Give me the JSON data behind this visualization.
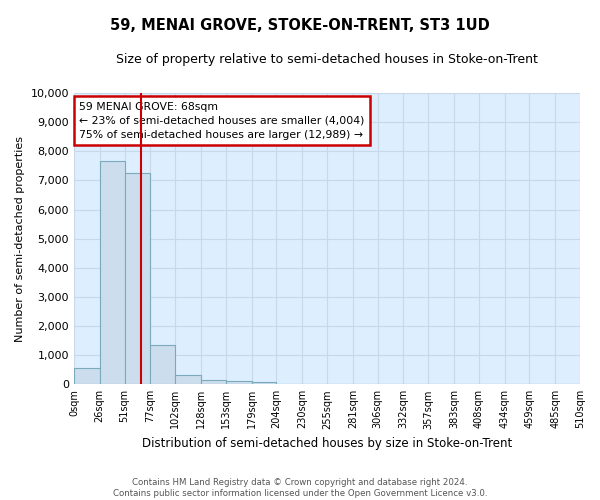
{
  "title": "59, MENAI GROVE, STOKE-ON-TRENT, ST3 1UD",
  "subtitle": "Size of property relative to semi-detached houses in Stoke-on-Trent",
  "xlabel": "Distribution of semi-detached houses by size in Stoke-on-Trent",
  "ylabel": "Number of semi-detached properties",
  "footer_line1": "Contains HM Land Registry data © Crown copyright and database right 2024.",
  "footer_line2": "Contains public sector information licensed under the Open Government Licence v3.0.",
  "bin_edges": [
    0,
    26,
    51,
    77,
    102,
    128,
    153,
    179,
    204,
    230,
    255,
    281,
    306,
    332,
    357,
    383,
    408,
    434,
    459,
    485,
    510
  ],
  "bin_labels": [
    "0sqm",
    "26sqm",
    "51sqm",
    "77sqm",
    "102sqm",
    "128sqm",
    "153sqm",
    "179sqm",
    "204sqm",
    "230sqm",
    "255sqm",
    "281sqm",
    "306sqm",
    "332sqm",
    "357sqm",
    "383sqm",
    "408sqm",
    "434sqm",
    "459sqm",
    "485sqm",
    "510sqm"
  ],
  "bar_values": [
    550,
    7650,
    7250,
    1350,
    320,
    150,
    110,
    90,
    0,
    0,
    0,
    0,
    0,
    0,
    0,
    0,
    0,
    0,
    0,
    0
  ],
  "bar_color": "#ccdded",
  "bar_edge_color": "#7aaabb",
  "annotation_title": "59 MENAI GROVE: 68sqm",
  "annotation_line1": "← 23% of semi-detached houses are smaller (4,004)",
  "annotation_line2": "75% of semi-detached houses are larger (12,989) →",
  "annotation_box_color": "#ffffff",
  "annotation_box_edge": "#cc0000",
  "red_line_color": "#cc0000",
  "grid_color": "#c8d8e8",
  "background_color": "#ddeeff",
  "ylim": [
    0,
    10000
  ],
  "yticks": [
    0,
    1000,
    2000,
    3000,
    4000,
    5000,
    6000,
    7000,
    8000,
    9000,
    10000
  ],
  "property_sqm": 68,
  "property_bin": 2
}
